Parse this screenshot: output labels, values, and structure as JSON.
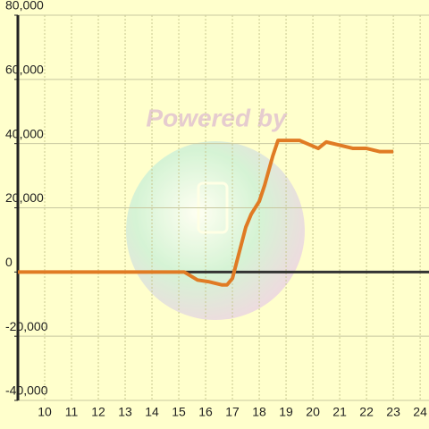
{
  "chart_data": {
    "type": "line",
    "annotation": "Powered by",
    "x": [
      9,
      15.2,
      15.7,
      16.1,
      16.6,
      16.8,
      17,
      17.5,
      17.7,
      18,
      18.2,
      18.5,
      18.7,
      19.5,
      20.2,
      20.5,
      21,
      21.5,
      22,
      22.5,
      23
    ],
    "values": [
      0,
      0,
      -2500,
      -3000,
      -4000,
      -4000,
      -2000,
      14000,
      18000,
      22000,
      27000,
      36000,
      41000,
      41000,
      38500,
      40500,
      39500,
      38500,
      38500,
      37500,
      37500
    ],
    "color": "#e07b24",
    "xlim": [
      9,
      24.33
    ],
    "xticks": [
      10,
      11,
      12,
      13,
      14,
      15,
      16,
      17,
      18,
      19,
      20,
      21,
      22,
      23,
      24
    ],
    "ylim": [
      -40000,
      80000
    ],
    "yticks": [
      {
        "value": -40000,
        "label": "-40,000"
      },
      {
        "value": -20000,
        "label": "-20,000"
      },
      0,
      {
        "value": 20000,
        "label": "20,000"
      },
      {
        "value": 40000,
        "label": "40,000"
      },
      {
        "value": 60000,
        "label": "60,000"
      },
      {
        "value": 80000,
        "label": "80,000"
      }
    ],
    "grid": true
  }
}
